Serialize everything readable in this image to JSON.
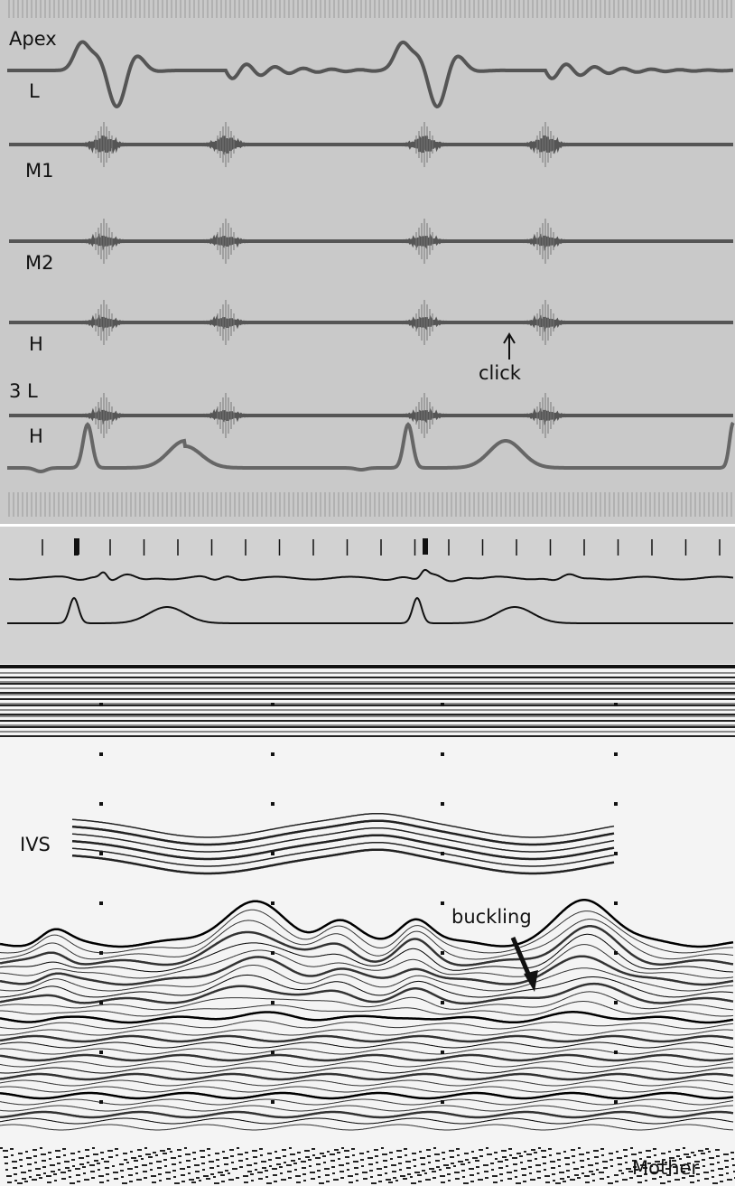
{
  "labels": {
    "apex": "Apex",
    "apex_l": "L",
    "m1": "M1",
    "m2": "M2",
    "h1": "H",
    "third_l": "3 L",
    "h2": "H",
    "click": "click",
    "ivs": "IVS",
    "buckling": "buckling",
    "mother": "Mother"
  }
}
